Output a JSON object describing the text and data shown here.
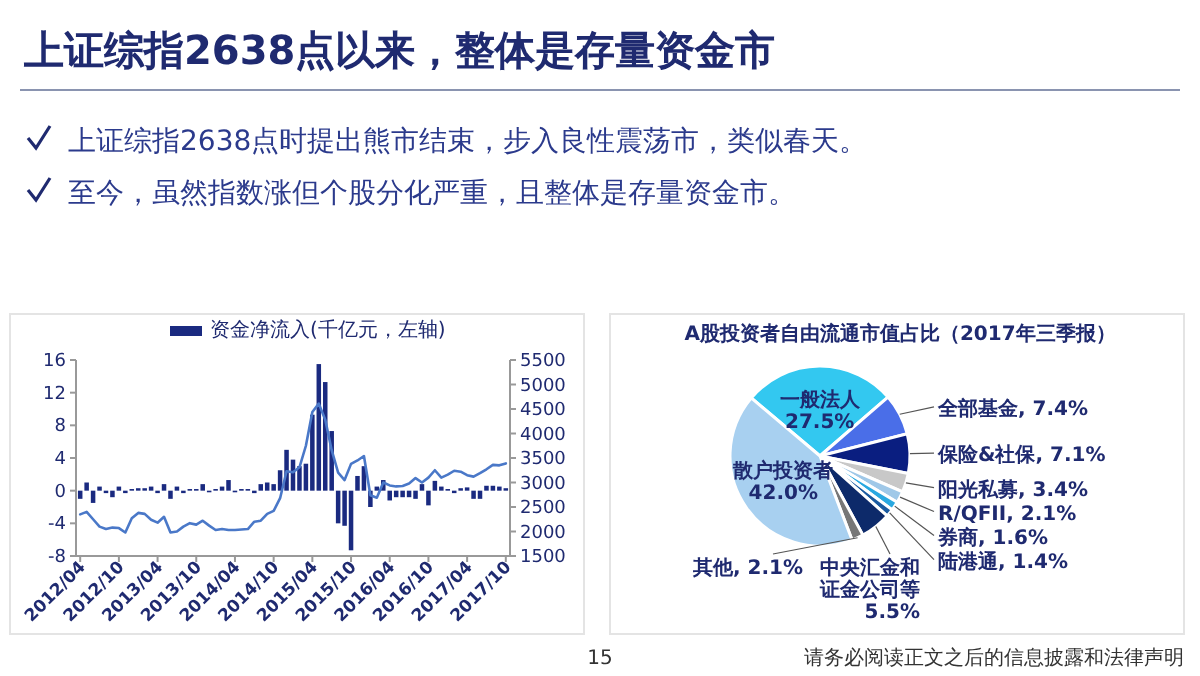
{
  "chart_data": [
    {
      "type": "other",
      "title": "上证综指2638点以来，整体是存量资金市",
      "annotations": [
        "上证综指2638点时提出熊市结束，步入良性震荡市，类似春天。",
        "至今，虽然指数涨但个股分化严重，且整体是存量资金市。"
      ]
    },
    {
      "type": "bar",
      "categories": [
        "2012/04",
        null,
        null,
        null,
        null,
        null,
        "2012/10",
        null,
        null,
        null,
        null,
        null,
        "2013/04",
        null,
        null,
        null,
        null,
        null,
        "2013/10",
        null,
        null,
        null,
        null,
        null,
        "2014/04",
        null,
        null,
        null,
        null,
        null,
        "2014/10",
        null,
        null,
        null,
        null,
        null,
        "2015/04",
        null,
        null,
        null,
        null,
        null,
        "2015/10",
        null,
        null,
        null,
        null,
        null,
        "2016/04",
        null,
        null,
        null,
        null,
        null,
        "2016/10",
        null,
        null,
        null,
        null,
        null,
        "2017/04",
        null,
        null,
        null,
        null,
        null,
        "2017/10"
      ],
      "series": [
        {
          "name": "资金净流入(千亿元，左轴)",
          "color": "#1a2a80",
          "values": [
            -1,
            1,
            -1.5,
            0.5,
            -0.3,
            -0.8,
            0.5,
            -0.3,
            0.2,
            0.3,
            0.3,
            0.5,
            -0.3,
            0.8,
            -1,
            0.5,
            -0.3,
            0.2,
            0.2,
            0.8,
            -0.2,
            0.2,
            0.5,
            1.3,
            -0.2,
            0.2,
            0.2,
            -0.3,
            0.8,
            1,
            0.8,
            2.5,
            5,
            3.8,
            3,
            3.3,
            9.3,
            15.5,
            13.3,
            7.3,
            -4,
            -4.3,
            -7.3,
            1.8,
            3,
            -2,
            0.5,
            1.3,
            -1.2,
            -0.8,
            -0.8,
            -0.8,
            -1,
            0.8,
            -1.8,
            1.2,
            0.5,
            0.2,
            -0.3,
            0.3,
            0.4,
            -1,
            -1,
            0.6,
            0.6,
            0.5,
            0.3
          ]
        },
        {
          "type": "line",
          "axis": "y2",
          "color": "#4a78c8",
          "values": [
            2350,
            2400,
            2250,
            2100,
            2050,
            2080,
            2070,
            1980,
            2270,
            2380,
            2360,
            2240,
            2180,
            2300,
            1980,
            2000,
            2100,
            2170,
            2140,
            2220,
            2120,
            2030,
            2050,
            2030,
            2030,
            2040,
            2050,
            2200,
            2220,
            2360,
            2420,
            2680,
            3230,
            3210,
            3310,
            3750,
            4440,
            4610,
            4280,
            3660,
            3200,
            3050,
            3380,
            3450,
            3540,
            2740,
            2690,
            3000,
            2940,
            2920,
            2930,
            2980,
            3090,
            3000,
            3100,
            3250,
            3100,
            3160,
            3240,
            3220,
            3150,
            3120,
            3190,
            3270,
            3360,
            3350,
            3390
          ]
        }
      ],
      "ylim": [
        -8,
        16
      ],
      "yticks": [
        -8,
        -4,
        0,
        4,
        8,
        12,
        16
      ],
      "y2lim": [
        1500,
        5500
      ],
      "y2ticks": [
        1500,
        2000,
        2500,
        3000,
        3500,
        4000,
        4500,
        5000,
        5500
      ],
      "legend": "top"
    },
    {
      "type": "pie",
      "title": "A股投资者自由流通市值占比（2017年三季报）",
      "categories": [
        "一般法人",
        "全部基金",
        "保险&社保",
        "阳光私募",
        "R/QFII",
        "券商",
        "陆港通",
        "中央汇金和证金公司等",
        "其他",
        "散户投资者"
      ],
      "values": [
        27.5,
        7.4,
        7.1,
        3.4,
        2.1,
        1.6,
        1.4,
        5.5,
        2.1,
        42.0
      ],
      "value_labels": [
        "27.5%",
        "7.4%",
        "7.1%",
        "3.4%",
        "2.1%",
        "1.6%",
        "1.4%",
        "5.5%",
        "2.1%",
        "42.0%"
      ],
      "colors": [
        "#33c8f0",
        "#4a6ee8",
        "#0a1e80",
        "#c8c8c8",
        "#9fc8e8",
        "#2aa8e0",
        "#1a5aa0",
        "#0d2a6a",
        "#777777",
        "#a8d0f0"
      ]
    },
    {
      "type": "other",
      "annotations": [
        "15",
        "请务必阅读正文之后的信息披露和法律声明"
      ]
    }
  ]
}
